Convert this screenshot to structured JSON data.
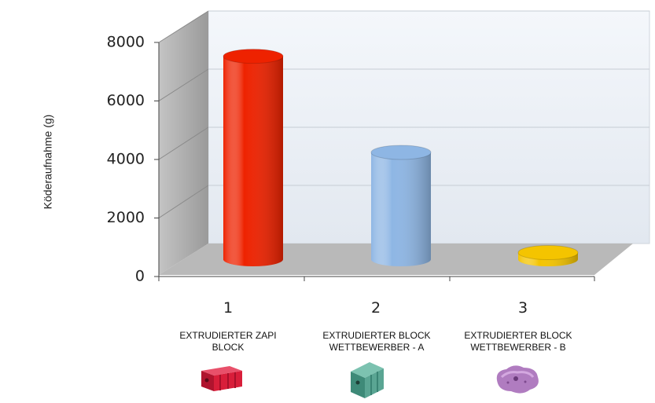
{
  "chart_data": {
    "type": "bar",
    "style": "3d-cylinder",
    "title": "",
    "xlabel": "",
    "ylabel": "Köderaufnahme (g)",
    "categories": [
      "1",
      "2",
      "3"
    ],
    "category_descriptions": [
      [
        "EXTRUDIERTER ZAPI",
        "BLOCK"
      ],
      [
        "EXTRUDIERTER BLOCK",
        "WETTBEWERBER - A"
      ],
      [
        "EXTRUDIERTER BLOCK",
        "WETTBEWERBER - B"
      ]
    ],
    "values": [
      7600,
      4000,
      250
    ],
    "ylim": [
      0,
      8000
    ],
    "yticks": [
      "0",
      "2000",
      "4000",
      "6000",
      "8000"
    ],
    "grid": true,
    "legend": "none",
    "colors": [
      "#ee2200",
      "#8eb6e4",
      "#f4c400"
    ]
  },
  "products": [
    {
      "icon": "red-bait-block-icon",
      "color": "#d81e3a"
    },
    {
      "icon": "green-bait-block-icon",
      "color": "#5aa593"
    },
    {
      "icon": "purple-bait-block-icon",
      "color": "#b07cc0"
    }
  ]
}
